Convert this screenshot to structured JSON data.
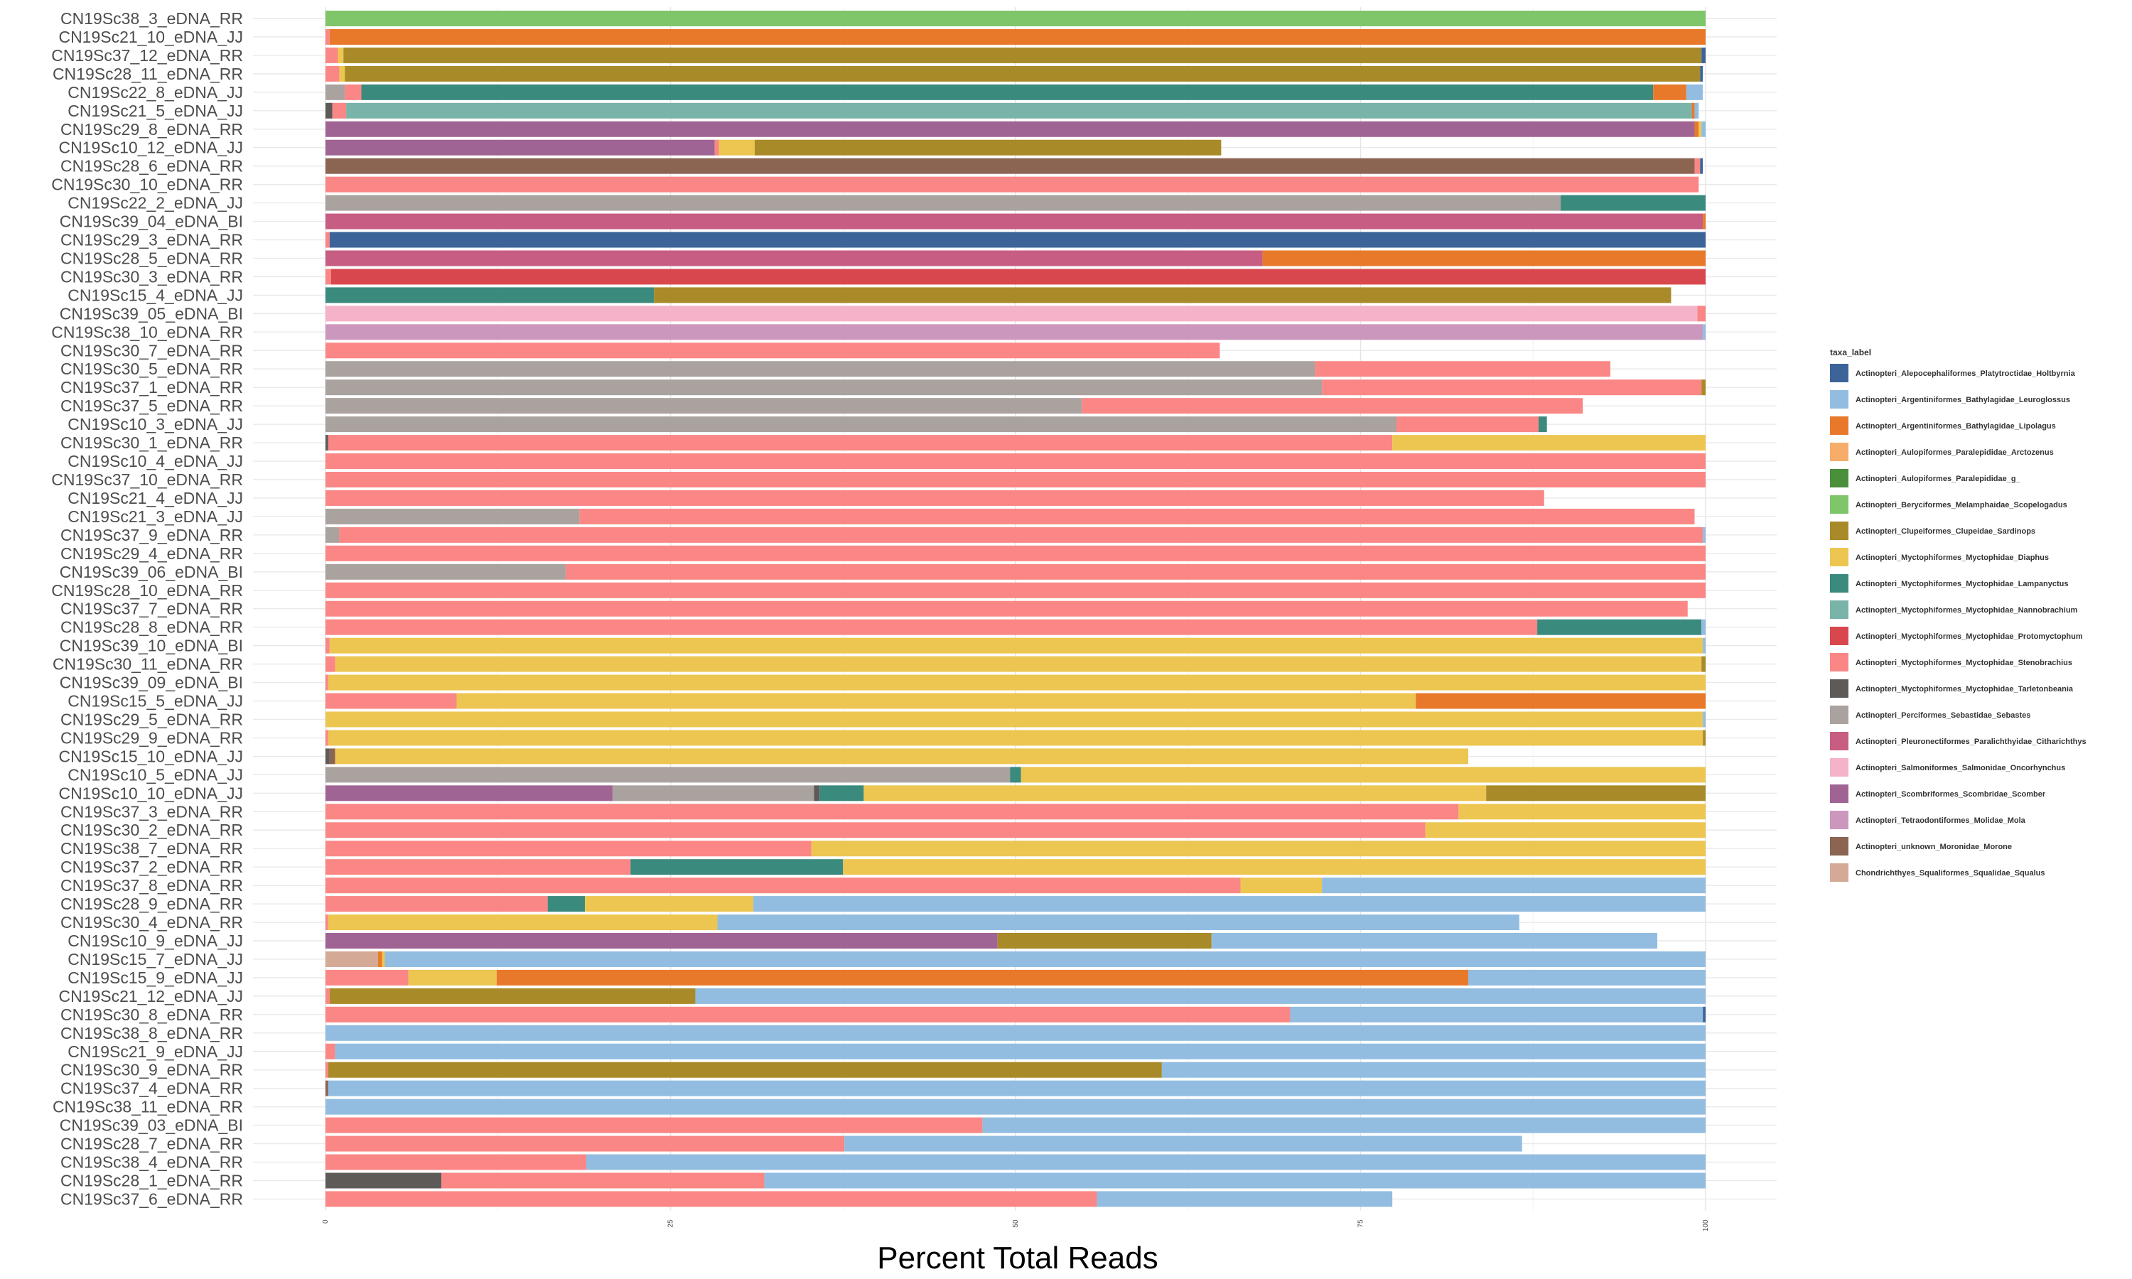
{
  "chart_data": {
    "type": "bar",
    "orientation": "horizontal",
    "stacked": true,
    "xlabel": "Percent Total Reads",
    "ylabel": "",
    "xlim": [
      0,
      100
    ],
    "xticks": [
      "0",
      "25",
      "50",
      "75",
      "100"
    ],
    "grid": true,
    "legend_title": "taxa_label",
    "legend_position": "right",
    "legend": [
      {
        "key": "hol",
        "label": "Actinopteri_Alepocephaliformes_Platytroctidae_Holtbyrnia",
        "color": "#3d6499"
      },
      {
        "key": "leu",
        "label": "Actinopteri_Argentiniformes_Bathylagidae_Leuroglossus",
        "color": "#92bde0"
      },
      {
        "key": "lip",
        "label": "Actinopteri_Argentiniformes_Bathylagidae_Lipolagus",
        "color": "#e8792a"
      },
      {
        "key": "arc",
        "label": "Actinopteri_Aulopiformes_Paralepididae_Arctozenus",
        "color": "#f6ad6a"
      },
      {
        "key": "parg",
        "label": "Actinopteri_Aulopiformes_Paralepididae_g_",
        "color": "#4a8f3a"
      },
      {
        "key": "sco",
        "label": "Actinopteri_Beryciformes_Melamphaidae_Scopelogadus",
        "color": "#7fc66a"
      },
      {
        "key": "sar",
        "label": "Actinopteri_Clupeiformes_Clupeidae_Sardinops",
        "color": "#a98a28"
      },
      {
        "key": "dia",
        "label": "Actinopteri_Myctophiformes_Myctophidae_Diaphus",
        "color": "#ecc651"
      },
      {
        "key": "lam",
        "label": "Actinopteri_Myctophiformes_Myctophidae_Lampanyctus",
        "color": "#3b8a7e"
      },
      {
        "key": "nan",
        "label": "Actinopteri_Myctophiformes_Myctophidae_Nannobrachium",
        "color": "#7ab3a8"
      },
      {
        "key": "pro",
        "label": "Actinopteri_Myctophiformes_Myctophidae_Protomyctophum",
        "color": "#d9474e"
      },
      {
        "key": "ste",
        "label": "Actinopteri_Myctophiformes_Myctophidae_Stenobrachius",
        "color": "#fa8785"
      },
      {
        "key": "tar",
        "label": "Actinopteri_Myctophiformes_Myctophidae_Tarletonbeania",
        "color": "#5e5a58"
      },
      {
        "key": "seb",
        "label": "Actinopteri_Perciformes_Sebastidae_Sebastes",
        "color": "#aaa29e"
      },
      {
        "key": "cit",
        "label": "Actinopteri_Pleuronectiformes_Paralichthyidae_Citharichthys",
        "color": "#c75d82"
      },
      {
        "key": "onc",
        "label": "Actinopteri_Salmoniformes_Salmonidae_Oncorhynchus",
        "color": "#f5b3c9"
      },
      {
        "key": "scb",
        "label": "Actinopteri_Scombriformes_Scombridae_Scomber",
        "color": "#a06494"
      },
      {
        "key": "mol",
        "label": "Actinopteri_Tetraodontiformes_Molidae_Mola",
        "color": "#cc97bd"
      },
      {
        "key": "mor",
        "label": "Actinopteri_unknown_Moronidae_Morone",
        "color": "#8b6452"
      },
      {
        "key": "squ",
        "label": "Chondrichthyes_Squaliformes_Squalidae_Squalus",
        "color": "#d4a996"
      }
    ],
    "series_order": [
      "hol",
      "leu",
      "lip",
      "arc",
      "parg",
      "sco",
      "sar",
      "dia",
      "lam",
      "nan",
      "pro",
      "ste",
      "tar",
      "seb",
      "cit",
      "onc",
      "scb",
      "mol",
      "mor",
      "squ"
    ],
    "rows": [
      {
        "sample": "CN19Sc38_3_eDNA_RR",
        "segments": [
          [
            "sco",
            100.0
          ]
        ]
      },
      {
        "sample": "CN19Sc21_10_eDNA_JJ",
        "segments": [
          [
            "ste",
            0.3
          ],
          [
            "lip",
            99.7
          ]
        ]
      },
      {
        "sample": "CN19Sc37_12_eDNA_RR",
        "segments": [
          [
            "ste",
            0.9
          ],
          [
            "dia",
            0.4
          ],
          [
            "sar",
            98.4
          ],
          [
            "hol",
            0.3
          ]
        ]
      },
      {
        "sample": "CN19Sc28_11_eDNA_RR",
        "segments": [
          [
            "ste",
            1.0
          ],
          [
            "dia",
            0.4
          ],
          [
            "sar",
            98.2
          ],
          [
            "hol",
            0.2
          ]
        ]
      },
      {
        "sample": "CN19Sc22_8_eDNA_JJ",
        "segments": [
          [
            "seb",
            1.4
          ],
          [
            "ste",
            1.2
          ],
          [
            "lam",
            93.6
          ],
          [
            "lip",
            2.4
          ],
          [
            "leu",
            1.2
          ]
        ]
      },
      {
        "sample": "CN19Sc21_5_eDNA_JJ",
        "segments": [
          [
            "tar",
            0.5
          ],
          [
            "ste",
            1.0
          ],
          [
            "nan",
            97.5
          ],
          [
            "lip",
            0.2
          ],
          [
            "leu",
            0.3
          ]
        ]
      },
      {
        "sample": "CN19Sc29_8_eDNA_RR",
        "segments": [
          [
            "scb",
            99.2
          ],
          [
            "lip",
            0.3
          ],
          [
            "dia",
            0.2
          ],
          [
            "leu",
            0.3
          ]
        ]
      },
      {
        "sample": "CN19Sc10_12_eDNA_JJ",
        "segments": [
          [
            "scb",
            28.2
          ],
          [
            "ste",
            0.3
          ],
          [
            "dia",
            2.6
          ],
          [
            "sar",
            33.8
          ]
        ]
      },
      {
        "sample": "CN19Sc28_6_eDNA_RR",
        "segments": [
          [
            "mor",
            99.2
          ],
          [
            "ste",
            0.4
          ],
          [
            "hol",
            0.2
          ]
        ]
      },
      {
        "sample": "CN19Sc30_10_eDNA_RR",
        "segments": [
          [
            "ste",
            99.5
          ]
        ]
      },
      {
        "sample": "CN19Sc22_2_eDNA_JJ",
        "segments": [
          [
            "seb",
            89.5
          ],
          [
            "lam",
            10.5
          ]
        ]
      },
      {
        "sample": "CN19Sc39_04_eDNA_BI",
        "segments": [
          [
            "cit",
            99.8
          ],
          [
            "lip",
            0.2
          ]
        ]
      },
      {
        "sample": "CN19Sc29_3_eDNA_RR",
        "segments": [
          [
            "ste",
            0.3
          ],
          [
            "hol",
            99.7
          ]
        ]
      },
      {
        "sample": "CN19Sc28_5_eDNA_RR",
        "segments": [
          [
            "cit",
            67.9
          ],
          [
            "lip",
            32.1
          ]
        ]
      },
      {
        "sample": "CN19Sc30_3_eDNA_RR",
        "segments": [
          [
            "ste",
            0.4
          ],
          [
            "pro",
            99.6
          ]
        ]
      },
      {
        "sample": "CN19Sc15_4_eDNA_JJ",
        "segments": [
          [
            "lam",
            23.8
          ],
          [
            "sar",
            73.7
          ]
        ]
      },
      {
        "sample": "CN19Sc39_05_eDNA_BI",
        "segments": [
          [
            "onc",
            99.4
          ],
          [
            "ste",
            0.6
          ]
        ]
      },
      {
        "sample": "CN19Sc38_10_eDNA_RR",
        "segments": [
          [
            "mol",
            99.8
          ],
          [
            "leu",
            0.2
          ]
        ]
      },
      {
        "sample": "CN19Sc30_7_eDNA_RR",
        "segments": [
          [
            "ste",
            64.8
          ]
        ]
      },
      {
        "sample": "CN19Sc30_5_eDNA_RR",
        "segments": [
          [
            "seb",
            71.7
          ],
          [
            "ste",
            21.4
          ]
        ]
      },
      {
        "sample": "CN19Sc37_1_eDNA_RR",
        "segments": [
          [
            "seb",
            72.2
          ],
          [
            "ste",
            27.5
          ],
          [
            "sar",
            0.3
          ]
        ]
      },
      {
        "sample": "CN19Sc37_5_eDNA_RR",
        "segments": [
          [
            "seb",
            54.8
          ],
          [
            "ste",
            36.3
          ]
        ]
      },
      {
        "sample": "CN19Sc10_3_eDNA_JJ",
        "segments": [
          [
            "seb",
            77.6
          ],
          [
            "ste",
            10.3
          ],
          [
            "lam",
            0.6
          ]
        ]
      },
      {
        "sample": "CN19Sc30_1_eDNA_RR",
        "segments": [
          [
            "tar",
            0.2
          ],
          [
            "ste",
            77.1
          ],
          [
            "dia",
            22.7
          ]
        ]
      },
      {
        "sample": "CN19Sc10_4_eDNA_JJ",
        "segments": [
          [
            "ste",
            100.0
          ]
        ]
      },
      {
        "sample": "CN19Sc37_10_eDNA_RR",
        "segments": [
          [
            "ste",
            100.0
          ]
        ]
      },
      {
        "sample": "CN19Sc21_4_eDNA_JJ",
        "segments": [
          [
            "ste",
            88.3
          ]
        ]
      },
      {
        "sample": "CN19Sc21_3_eDNA_JJ",
        "segments": [
          [
            "seb",
            18.4
          ],
          [
            "ste",
            80.8
          ]
        ]
      },
      {
        "sample": "CN19Sc37_9_eDNA_RR",
        "segments": [
          [
            "seb",
            1.0
          ],
          [
            "ste",
            98.8
          ],
          [
            "leu",
            0.2
          ]
        ]
      },
      {
        "sample": "CN19Sc29_4_eDNA_RR",
        "segments": [
          [
            "ste",
            100.0
          ]
        ]
      },
      {
        "sample": "CN19Sc39_06_eDNA_BI",
        "segments": [
          [
            "seb",
            17.4
          ],
          [
            "ste",
            82.6
          ]
        ]
      },
      {
        "sample": "CN19Sc28_10_eDNA_RR",
        "segments": [
          [
            "ste",
            100.0
          ]
        ]
      },
      {
        "sample": "CN19Sc37_7_eDNA_RR",
        "segments": [
          [
            "ste",
            98.7
          ]
        ]
      },
      {
        "sample": "CN19Sc28_8_eDNA_RR",
        "segments": [
          [
            "ste",
            87.8
          ],
          [
            "lam",
            11.9
          ],
          [
            "leu",
            0.3
          ]
        ]
      },
      {
        "sample": "CN19Sc39_10_eDNA_BI",
        "segments": [
          [
            "ste",
            0.3
          ],
          [
            "dia",
            99.5
          ],
          [
            "leu",
            0.2
          ]
        ]
      },
      {
        "sample": "CN19Sc30_11_eDNA_RR",
        "segments": [
          [
            "ste",
            0.7
          ],
          [
            "dia",
            99.0
          ],
          [
            "sar",
            0.3
          ]
        ]
      },
      {
        "sample": "CN19Sc39_09_eDNA_BI",
        "segments": [
          [
            "ste",
            0.2
          ],
          [
            "dia",
            99.8
          ]
        ]
      },
      {
        "sample": "CN19Sc15_5_eDNA_JJ",
        "segments": [
          [
            "ste",
            9.5
          ],
          [
            "dia",
            69.5
          ],
          [
            "lip",
            21.0
          ]
        ]
      },
      {
        "sample": "CN19Sc29_5_eDNA_RR",
        "segments": [
          [
            "dia",
            99.8
          ],
          [
            "leu",
            0.2
          ]
        ]
      },
      {
        "sample": "CN19Sc29_9_eDNA_RR",
        "segments": [
          [
            "ste",
            0.2
          ],
          [
            "dia",
            99.6
          ],
          [
            "sar",
            0.2
          ]
        ]
      },
      {
        "sample": "CN19Sc15_10_eDNA_JJ",
        "segments": [
          [
            "tar",
            0.3
          ],
          [
            "mor",
            0.4
          ],
          [
            "dia",
            82.1
          ]
        ]
      },
      {
        "sample": "CN19Sc10_5_eDNA_JJ",
        "segments": [
          [
            "seb",
            49.6
          ],
          [
            "lam",
            0.8
          ],
          [
            "dia",
            49.6
          ]
        ]
      },
      {
        "sample": "CN19Sc10_10_eDNA_JJ",
        "segments": [
          [
            "scb",
            20.8
          ],
          [
            "seb",
            14.6
          ],
          [
            "tar",
            0.4
          ],
          [
            "lam",
            3.2
          ],
          [
            "dia",
            45.1
          ],
          [
            "sar",
            15.9
          ]
        ]
      },
      {
        "sample": "CN19Sc37_3_eDNA_RR",
        "segments": [
          [
            "ste",
            82.1
          ],
          [
            "dia",
            17.9
          ]
        ]
      },
      {
        "sample": "CN19Sc30_2_eDNA_RR",
        "segments": [
          [
            "ste",
            79.7
          ],
          [
            "dia",
            20.3
          ]
        ]
      },
      {
        "sample": "CN19Sc38_7_eDNA_RR",
        "segments": [
          [
            "ste",
            35.2
          ],
          [
            "dia",
            64.8
          ]
        ]
      },
      {
        "sample": "CN19Sc37_2_eDNA_RR",
        "segments": [
          [
            "ste",
            22.1
          ],
          [
            "lam",
            15.4
          ],
          [
            "dia",
            62.5
          ]
        ]
      },
      {
        "sample": "CN19Sc37_8_eDNA_RR",
        "segments": [
          [
            "ste",
            66.3
          ],
          [
            "dia",
            5.9
          ],
          [
            "leu",
            27.8
          ]
        ]
      },
      {
        "sample": "CN19Sc28_9_eDNA_RR",
        "segments": [
          [
            "ste",
            16.1
          ],
          [
            "lam",
            2.7
          ],
          [
            "dia",
            12.2
          ],
          [
            "leu",
            69.0
          ]
        ]
      },
      {
        "sample": "CN19Sc30_4_eDNA_RR",
        "segments": [
          [
            "ste",
            0.2
          ],
          [
            "dia",
            28.2
          ],
          [
            "leu",
            58.1
          ]
        ]
      },
      {
        "sample": "CN19Sc10_9_eDNA_JJ",
        "segments": [
          [
            "scb",
            48.7
          ],
          [
            "sar",
            15.5
          ],
          [
            "leu",
            32.3
          ]
        ]
      },
      {
        "sample": "CN19Sc15_7_eDNA_JJ",
        "segments": [
          [
            "squ",
            3.8
          ],
          [
            "lip",
            0.3
          ],
          [
            "dia",
            0.2
          ],
          [
            "leu",
            95.7
          ]
        ]
      },
      {
        "sample": "CN19Sc15_9_eDNA_JJ",
        "segments": [
          [
            "ste",
            6.0
          ],
          [
            "dia",
            6.4
          ],
          [
            "lip",
            70.4
          ],
          [
            "leu",
            17.2
          ]
        ]
      },
      {
        "sample": "CN19Sc21_12_eDNA_JJ",
        "segments": [
          [
            "ste",
            0.3
          ],
          [
            "sar",
            26.5
          ],
          [
            "leu",
            73.2
          ]
        ]
      },
      {
        "sample": "CN19Sc30_8_eDNA_RR",
        "segments": [
          [
            "ste",
            69.9
          ],
          [
            "leu",
            29.9
          ],
          [
            "hol",
            0.2
          ]
        ]
      },
      {
        "sample": "CN19Sc38_8_eDNA_RR",
        "segments": [
          [
            "leu",
            100.0
          ]
        ]
      },
      {
        "sample": "CN19Sc21_9_eDNA_JJ",
        "segments": [
          [
            "ste",
            0.7
          ],
          [
            "leu",
            99.3
          ]
        ]
      },
      {
        "sample": "CN19Sc30_9_eDNA_RR",
        "segments": [
          [
            "ste",
            0.2
          ],
          [
            "sar",
            60.4
          ],
          [
            "leu",
            39.4
          ]
        ]
      },
      {
        "sample": "CN19Sc37_4_eDNA_RR",
        "segments": [
          [
            "mor",
            0.2
          ],
          [
            "leu",
            99.8
          ]
        ]
      },
      {
        "sample": "CN19Sc38_11_eDNA_RR",
        "segments": [
          [
            "leu",
            100.0
          ]
        ]
      },
      {
        "sample": "CN19Sc39_03_eDNA_BI",
        "segments": [
          [
            "ste",
            47.6
          ],
          [
            "leu",
            52.4
          ]
        ]
      },
      {
        "sample": "CN19Sc28_7_eDNA_RR",
        "segments": [
          [
            "ste",
            37.6
          ],
          [
            "leu",
            49.1
          ]
        ]
      },
      {
        "sample": "CN19Sc38_4_eDNA_RR",
        "segments": [
          [
            "ste",
            18.9
          ],
          [
            "leu",
            81.1
          ]
        ]
      },
      {
        "sample": "CN19Sc28_1_eDNA_RR",
        "segments": [
          [
            "tar",
            8.4
          ],
          [
            "ste",
            23.4
          ],
          [
            "leu",
            68.2
          ]
        ]
      },
      {
        "sample": "CN19Sc37_6_eDNA_RR",
        "segments": [
          [
            "ste",
            55.9
          ],
          [
            "leu",
            21.4
          ]
        ]
      }
    ]
  }
}
